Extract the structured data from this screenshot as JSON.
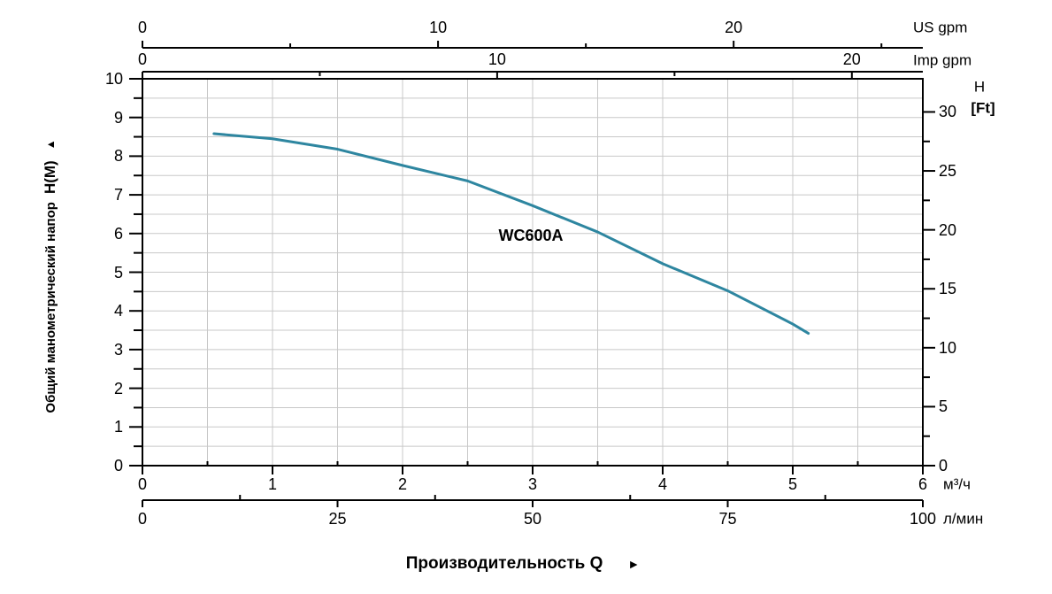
{
  "chart_data": {
    "type": "line",
    "title_label": "WC600A",
    "xlabel": "Производительность Q",
    "xlabel_arrow": "►",
    "series": [
      {
        "name": "WC600A",
        "x_m3h": [
          0.55,
          1.0,
          1.5,
          2.0,
          2.5,
          3.0,
          3.5,
          4.0,
          4.5,
          5.0,
          5.12
        ],
        "head_m": [
          8.58,
          8.45,
          8.18,
          7.76,
          7.36,
          6.72,
          6.04,
          5.22,
          4.52,
          3.66,
          3.42
        ]
      }
    ],
    "axes": {
      "us_gpm": {
        "title": "US gpm",
        "major_ticks": [
          0,
          10,
          20
        ],
        "minor_ticks": [
          5,
          15,
          25
        ],
        "range": [
          0,
          26.4
        ]
      },
      "imp_gpm": {
        "title": "Imp gpm",
        "major_ticks": [
          0,
          10,
          20
        ],
        "minor_ticks": [
          5,
          15
        ],
        "range": [
          0,
          22
        ]
      },
      "left_head_m": {
        "title": "Общий манометрический напор",
        "symbol": "H(M)",
        "arrow": "▲",
        "major_ticks": [
          10,
          9,
          8,
          7,
          6,
          5,
          4,
          3,
          2,
          1,
          0
        ],
        "minor_step": 0.5,
        "range": [
          0,
          10
        ]
      },
      "right_head_ft": {
        "title_line1": "H",
        "title_line2": "[Ft]",
        "major_ticks": [
          30,
          25,
          20,
          15,
          10,
          5,
          0
        ],
        "minor_ticks": [
          2.5,
          7.5,
          12.5,
          17.5,
          22.5,
          27.5
        ],
        "range": [
          0,
          32.8
        ]
      },
      "bottom_m3h": {
        "unit": "м³/ч",
        "major_ticks": [
          0,
          1,
          2,
          3,
          4,
          5,
          6
        ],
        "minor_ticks": [
          0.5,
          1.5,
          2.5,
          3.5,
          4.5,
          5.5
        ],
        "range": [
          0,
          6
        ]
      },
      "bottom_lmin": {
        "unit": "л/мин",
        "major_ticks": [
          0,
          25,
          50,
          75,
          100
        ],
        "minor_ticks": [
          12.5,
          37.5,
          62.5,
          87.5
        ],
        "range": [
          0,
          100
        ]
      }
    },
    "grid": {
      "visible": true,
      "x_step_m3h": 0.5,
      "y_step_m": 0.5
    },
    "colors": {
      "curve": "#2e86a0",
      "grid": "#c8c8c8",
      "axis": "#000000"
    }
  }
}
